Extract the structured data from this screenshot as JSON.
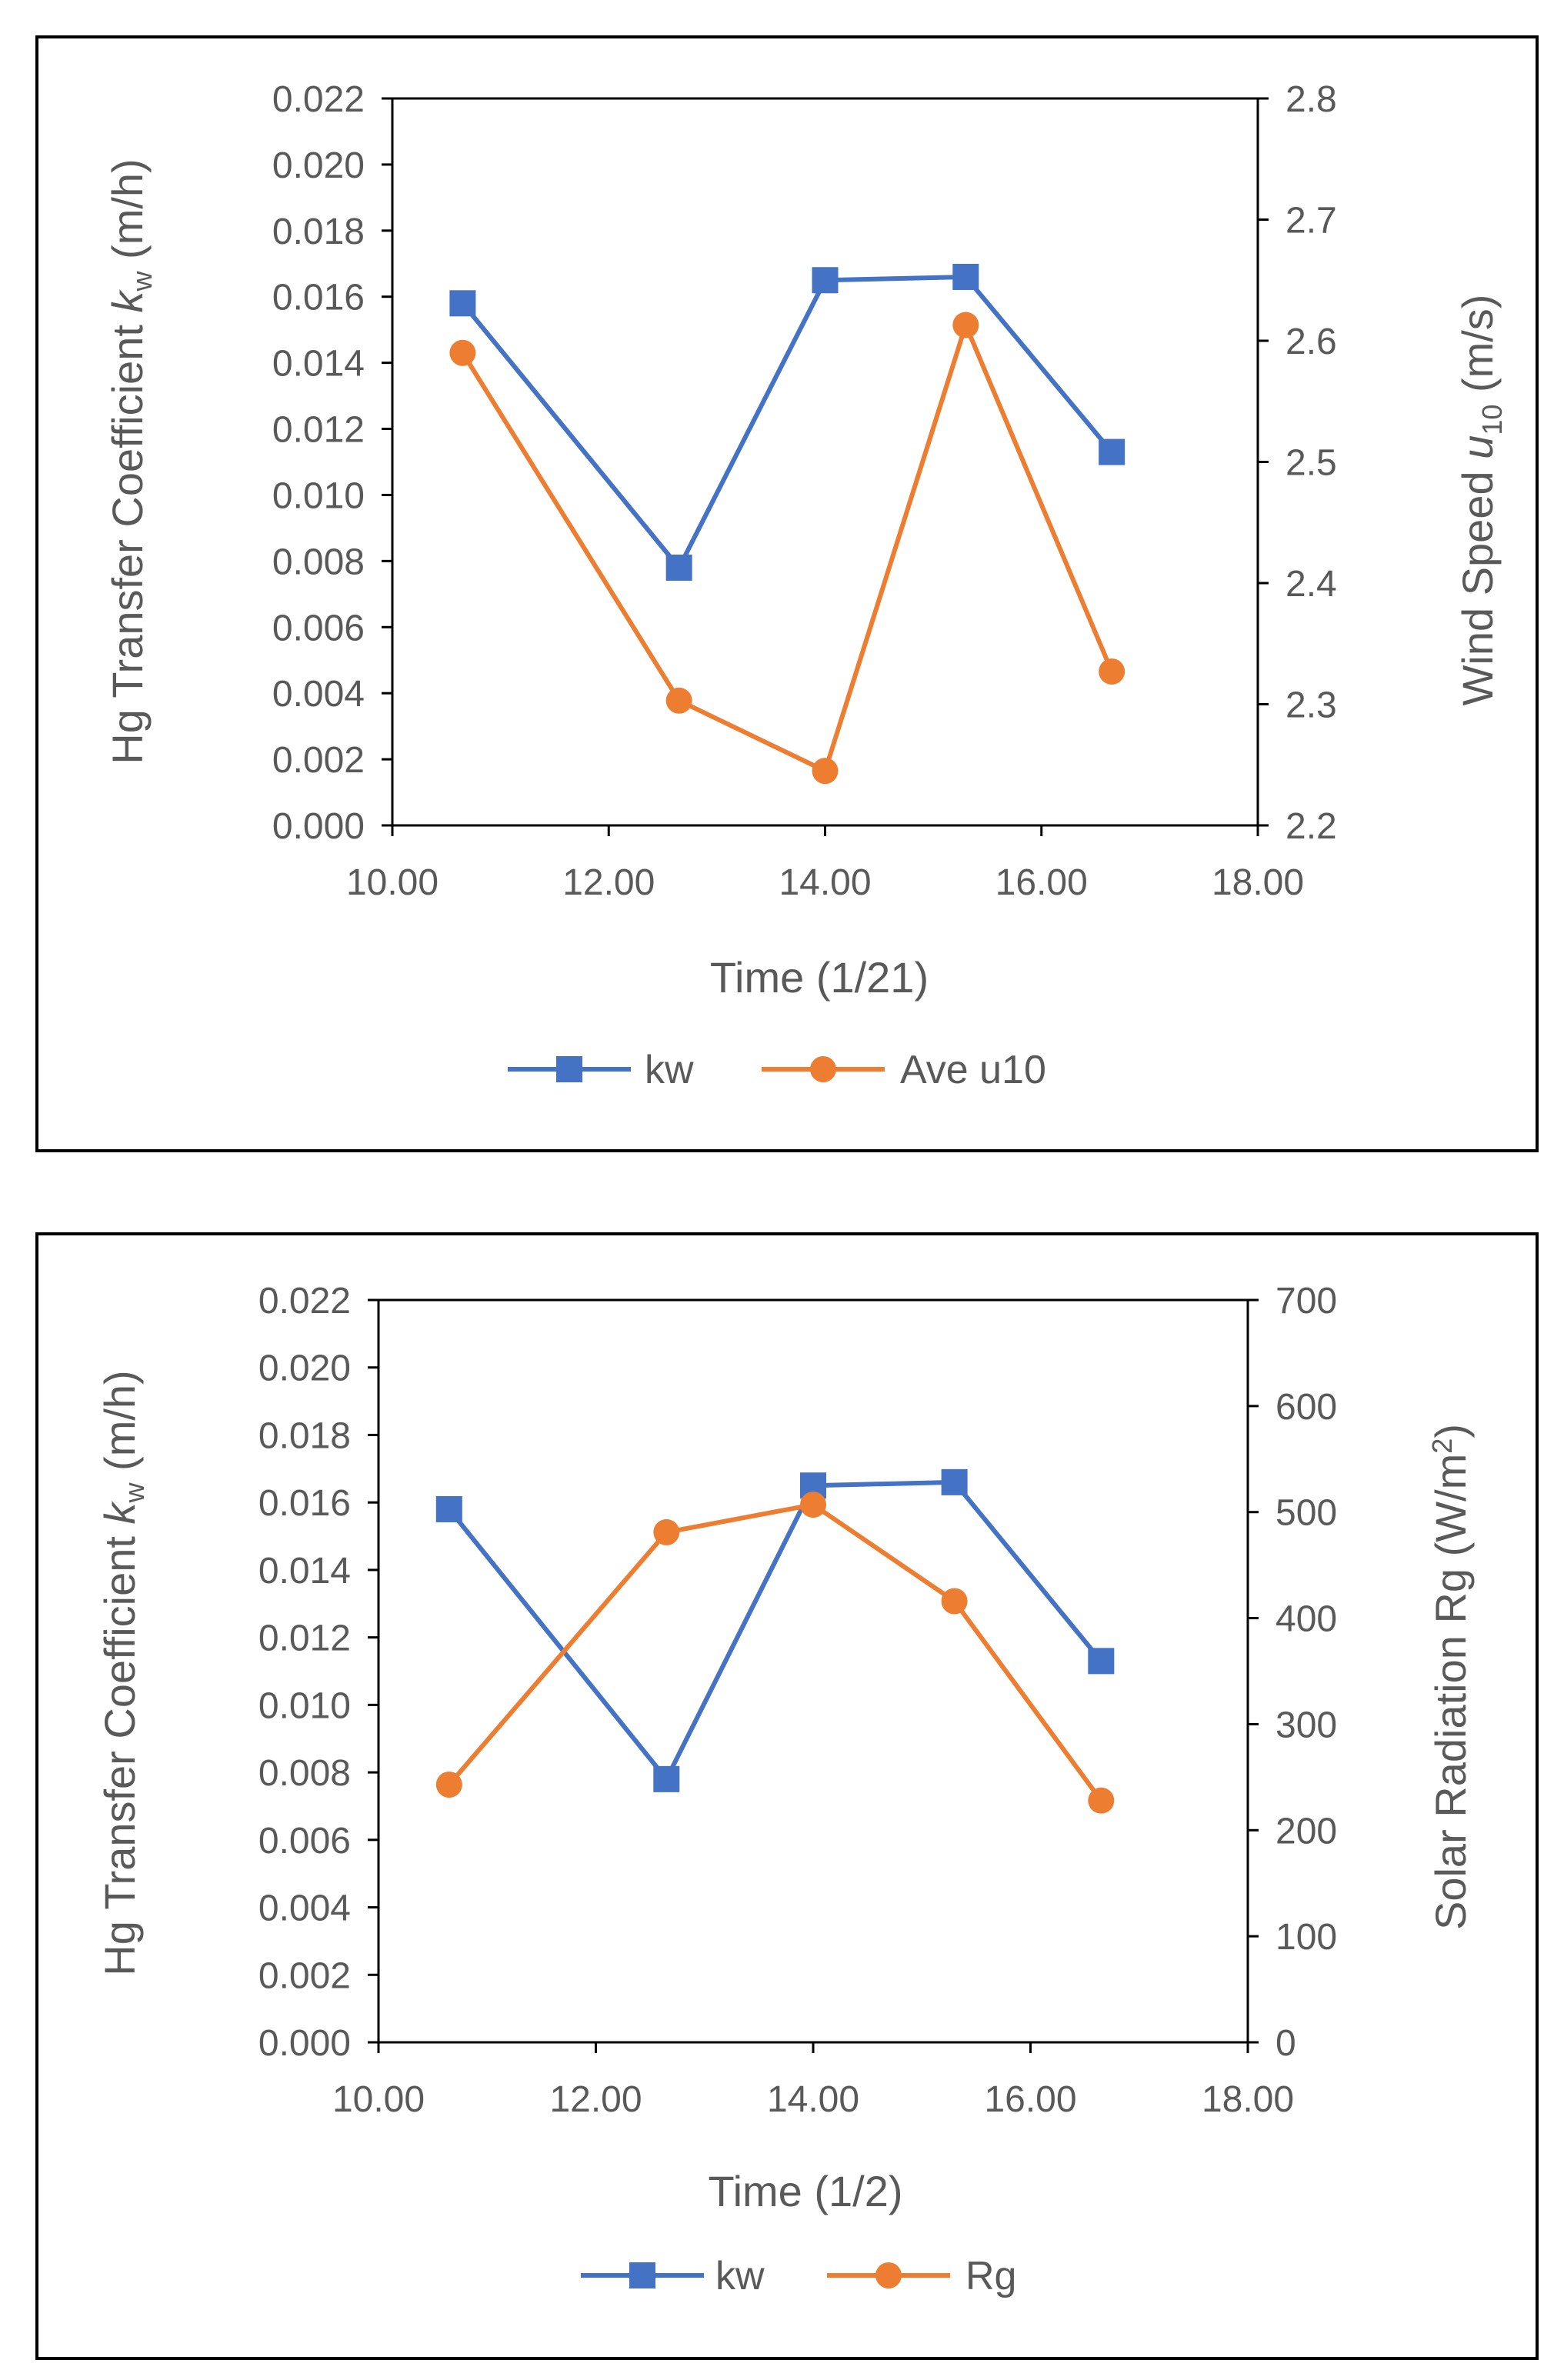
{
  "chart_data": [
    {
      "type": "line",
      "title": "",
      "xlabel": "Time (1/21)",
      "ylabel": {
        "pre": "Hg Transfer Coefficient ",
        "sym": "k",
        "sub": "w",
        "post": " (m/h)"
      },
      "y2label": {
        "pre": "Wind Speed ",
        "sym": "u",
        "sub": "10",
        "post": " (m/s)"
      },
      "xlim": [
        10,
        18
      ],
      "ylim": [
        0,
        0.022
      ],
      "y2lim": [
        2.2,
        2.8
      ],
      "xticks": [
        "10.00",
        "12.00",
        "14.00",
        "16.00",
        "18.00"
      ],
      "yticks": [
        "0.000",
        "0.002",
        "0.004",
        "0.006",
        "0.008",
        "0.010",
        "0.012",
        "0.014",
        "0.016",
        "0.018",
        "0.020",
        "0.022"
      ],
      "y2ticks": [
        "2.2",
        "2.3",
        "2.4",
        "2.5",
        "2.6",
        "2.7",
        "2.8"
      ],
      "series": [
        {
          "name": "kw",
          "axis": "left",
          "color": "#4472C4",
          "marker": "square",
          "x": [
            10.65,
            12.65,
            14.0,
            15.3,
            16.65
          ],
          "values": [
            0.0158,
            0.0078,
            0.0165,
            0.0166,
            0.0113
          ]
        },
        {
          "name": "Ave u10",
          "axis": "right",
          "color": "#ED7D31",
          "marker": "circle",
          "x": [
            10.65,
            12.65,
            14.0,
            15.3,
            16.65
          ],
          "values": [
            2.59,
            2.303,
            2.245,
            2.613,
            2.327
          ]
        }
      ]
    },
    {
      "type": "line",
      "title": "",
      "xlabel": "Time (1/2)",
      "ylabel": {
        "pre": "Hg Transfer Coefficient ",
        "sym": "k",
        "sub": "w",
        "post": " (m/h)"
      },
      "y2label": {
        "pre": "Solar Radiation Rg (W/m",
        "sup": "2",
        "post": ")"
      },
      "xlim": [
        10,
        18
      ],
      "ylim": [
        0,
        0.022
      ],
      "y2lim": [
        0,
        700
      ],
      "xticks": [
        "10.00",
        "12.00",
        "14.00",
        "16.00",
        "18.00"
      ],
      "yticks": [
        "0.000",
        "0.002",
        "0.004",
        "0.006",
        "0.008",
        "0.010",
        "0.012",
        "0.014",
        "0.016",
        "0.018",
        "0.020",
        "0.022"
      ],
      "y2ticks": [
        "0",
        "100",
        "200",
        "300",
        "400",
        "500",
        "600",
        "700"
      ],
      "series": [
        {
          "name": "kw",
          "axis": "left",
          "color": "#4472C4",
          "marker": "square",
          "x": [
            10.65,
            12.65,
            14.0,
            15.3,
            16.65
          ],
          "values": [
            0.0158,
            0.0078,
            0.0165,
            0.0166,
            0.0113
          ]
        },
        {
          "name": "Rg",
          "axis": "right",
          "color": "#ED7D31",
          "marker": "circle",
          "x": [
            10.65,
            12.65,
            14.0,
            15.3,
            16.65
          ],
          "values": [
            243,
            481,
            507,
            416,
            228
          ]
        }
      ]
    }
  ]
}
